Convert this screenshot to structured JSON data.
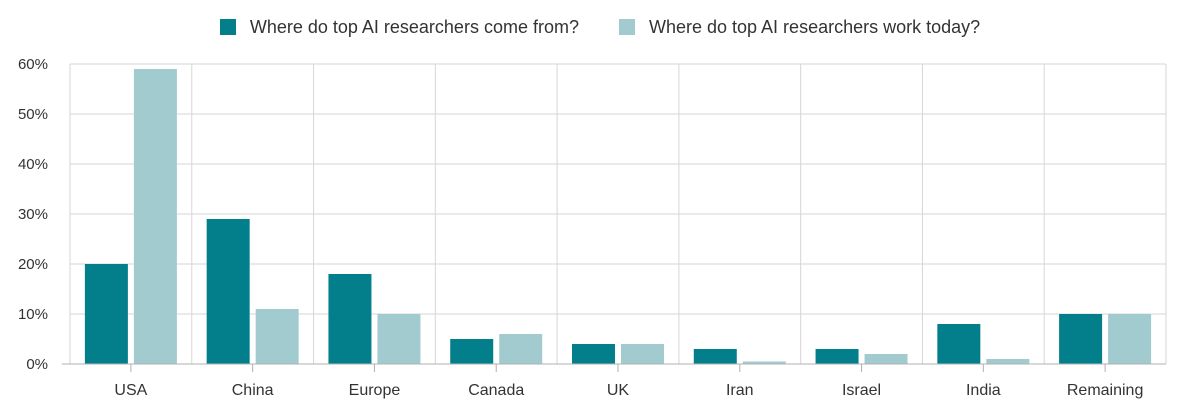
{
  "chart_data": {
    "type": "bar",
    "categories": [
      "USA",
      "China",
      "Europe",
      "Canada",
      "UK",
      "Iran",
      "Israel",
      "India",
      "Remaining"
    ],
    "series": [
      {
        "name": "Where do top AI researchers come from?",
        "values": [
          20,
          29,
          18,
          5,
          4,
          3,
          3,
          8,
          10
        ],
        "color": "#037f8c"
      },
      {
        "name": "Where do top AI researchers work today?",
        "values": [
          59,
          11,
          10,
          6,
          4,
          0.5,
          2,
          1,
          10
        ],
        "color": "#a2cbd0"
      }
    ],
    "ylim": [
      0,
      60
    ],
    "yticks": [
      0,
      10,
      20,
      30,
      40,
      50,
      60
    ],
    "ytick_format": "percent",
    "grid": true,
    "legend_position": "top-center",
    "title": "",
    "xlabel": "",
    "ylabel": ""
  }
}
